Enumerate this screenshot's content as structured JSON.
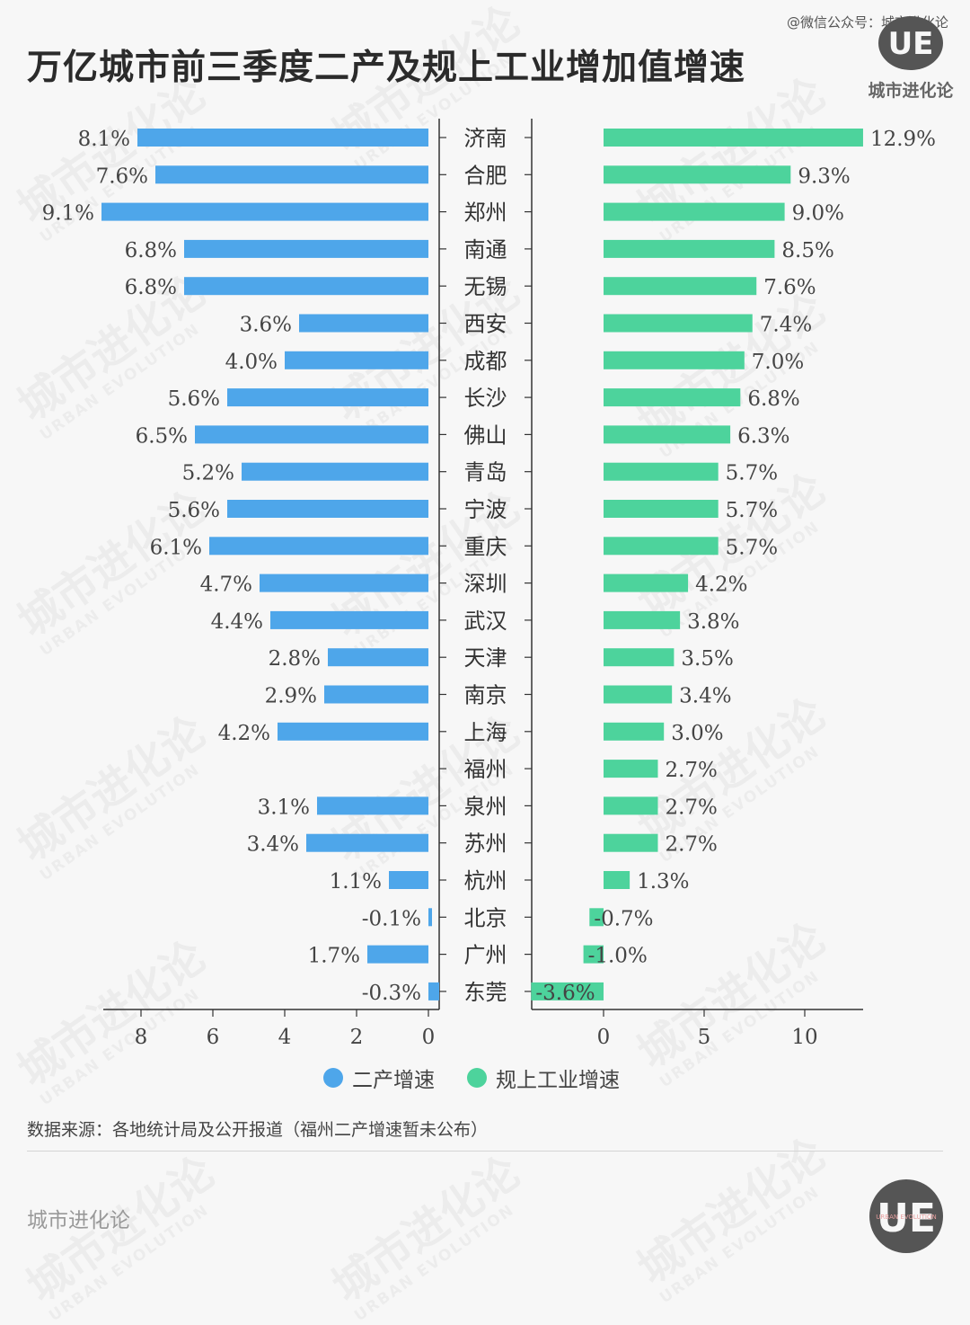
{
  "page": {
    "title": "万亿城市前三季度二产及规上工业增加值增速",
    "credit": "@微信公众号：城市进化论",
    "brand": "城市进化论",
    "logo_letters": "UE",
    "logo_small_text": "URBAN EVOLUTION",
    "watermark_cn": "城市进化论",
    "watermark_en": "URBAN EVOLUTION",
    "source_note": "数据来源：各地统计局及公开报道（福州二产增速暂未公布）"
  },
  "chart_data": {
    "type": "bar",
    "orientation": "horizontal",
    "categories": [
      "济南",
      "合肥",
      "郑州",
      "南通",
      "无锡",
      "西安",
      "成都",
      "长沙",
      "佛山",
      "青岛",
      "宁波",
      "重庆",
      "深圳",
      "武汉",
      "天津",
      "南京",
      "上海",
      "福州",
      "泉州",
      "苏州",
      "杭州",
      "北京",
      "广州",
      "东莞"
    ],
    "series": [
      {
        "name": "二产增速",
        "color": "#4ea6ea",
        "values": [
          8.1,
          7.6,
          9.1,
          6.8,
          6.8,
          3.6,
          4.0,
          5.6,
          6.5,
          5.2,
          5.6,
          6.1,
          4.7,
          4.4,
          2.8,
          2.9,
          4.2,
          null,
          3.1,
          3.4,
          1.1,
          -0.1,
          1.7,
          -0.3
        ],
        "labels": [
          "8.1%",
          "7.6%",
          "9.1%",
          "6.8%",
          "6.8%",
          "3.6%",
          "4.0%",
          "5.6%",
          "6.5%",
          "5.2%",
          "5.6%",
          "6.1%",
          "4.7%",
          "4.4%",
          "2.8%",
          "2.9%",
          "4.2%",
          "",
          "3.1%",
          "3.4%",
          "1.1%",
          "-0.1%",
          "1.7%",
          "-0.3%"
        ],
        "xlim": [
          10,
          -0.5
        ],
        "ticks": [
          "8",
          "6",
          "4",
          "2",
          "0"
        ],
        "tick_values": [
          8,
          6,
          4,
          2,
          0
        ]
      },
      {
        "name": "规上工业增速",
        "color": "#4dd39c",
        "values": [
          12.9,
          9.3,
          9.0,
          8.5,
          7.6,
          7.4,
          7.0,
          6.8,
          6.3,
          5.7,
          5.7,
          5.7,
          4.2,
          3.8,
          3.5,
          3.4,
          3.0,
          2.7,
          2.7,
          2.7,
          1.3,
          -0.7,
          -1.0,
          -3.6
        ],
        "labels": [
          "12.9%",
          "9.3%",
          "9.0%",
          "8.5%",
          "7.6%",
          "7.4%",
          "7.0%",
          "6.8%",
          "6.3%",
          "5.7%",
          "5.7%",
          "5.7%",
          "4.2%",
          "3.8%",
          "3.5%",
          "3.4%",
          "3.0%",
          "2.7%",
          "2.7%",
          "2.7%",
          "1.3%",
          "-0.7%",
          "-1.0%",
          "-3.6%"
        ],
        "xlim": [
          -3.6,
          12.9
        ],
        "ticks": [
          "0",
          "5",
          "10"
        ],
        "tick_values": [
          0,
          5,
          10
        ]
      }
    ],
    "legend": [
      "二产增速",
      "规上工业增速"
    ],
    "legend_position": "bottom",
    "grid": false
  }
}
